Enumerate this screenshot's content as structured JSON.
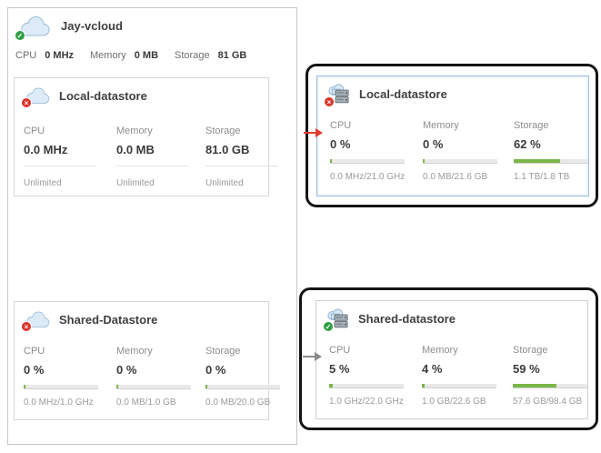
{
  "colors": {
    "bar_green": "#7ab648",
    "badge_green": "#2f9e44",
    "badge_red": "#d9342b",
    "arrow_red": "#e03c31",
    "arrow_gray": "#8c8c8c",
    "selected_border": "#9fbcd8"
  },
  "badges": {
    "ok": "✓",
    "error": "×"
  },
  "provider": {
    "title": "Jay-vcloud",
    "stats": [
      {
        "label": "CPU",
        "value": "0 MHz"
      },
      {
        "label": "Memory",
        "value": "0 MB"
      },
      {
        "label": "Storage",
        "value": "81 GB"
      }
    ]
  },
  "panels": {
    "left_local": {
      "title": "Local-datastore",
      "columns": [
        {
          "label": "CPU",
          "value": "0.0 MHz",
          "sub": "Unlimited"
        },
        {
          "label": "Memory",
          "value": "0.0 MB",
          "sub": "Unlimited"
        },
        {
          "label": "Storage",
          "value": "81.0 GB",
          "sub": "Unlimited"
        }
      ]
    },
    "left_shared": {
      "title": "Shared-Datastore",
      "columns": [
        {
          "label": "CPU",
          "value": "0 %",
          "pct": 0,
          "sub": "0.0 MHz/1.0 GHz"
        },
        {
          "label": "Memory",
          "value": "0 %",
          "pct": 0,
          "sub": "0.0 MB/1.0 GB"
        },
        {
          "label": "Storage",
          "value": "0 %",
          "pct": 0,
          "sub": "0.0 MB/20.0 GB"
        }
      ]
    },
    "right_local": {
      "title": "Local-datastore",
      "columns": [
        {
          "label": "CPU",
          "value": "0 %",
          "pct": 0,
          "sub": "0.0 MHz/21.0 GHz"
        },
        {
          "label": "Memory",
          "value": "0 %",
          "pct": 0,
          "sub": "0.0 MB/21.6 GB"
        },
        {
          "label": "Storage",
          "value": "62 %",
          "pct": 62,
          "sub": "1.1 TB/1.8 TB"
        }
      ]
    },
    "right_shared": {
      "title": "Shared-datastore",
      "columns": [
        {
          "label": "CPU",
          "value": "5 %",
          "pct": 5,
          "sub": "1.0 GHz/22.0 GHz"
        },
        {
          "label": "Memory",
          "value": "4 %",
          "pct": 4,
          "sub": "1.0 GB/22.6 GB"
        },
        {
          "label": "Storage",
          "value": "59 %",
          "pct": 59,
          "sub": "57.6 GB/98.4 GB"
        }
      ]
    }
  }
}
